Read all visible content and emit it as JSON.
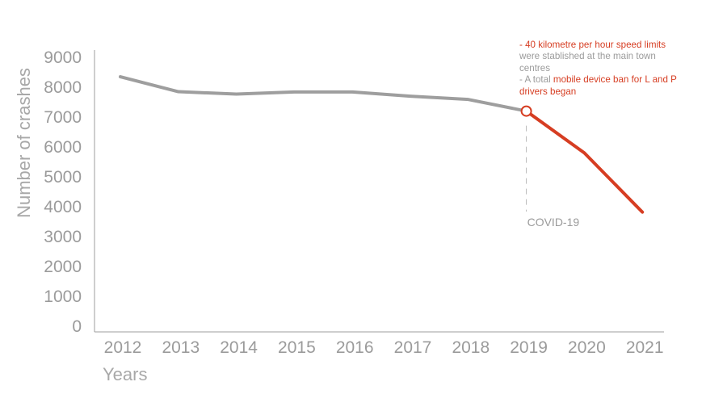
{
  "chart_data": {
    "type": "line",
    "title": "",
    "xlabel": "Years",
    "ylabel": "Number of crashes",
    "categories": [
      "2012",
      "2013",
      "2014",
      "2015",
      "2016",
      "2017",
      "2018",
      "2019",
      "2020",
      "2021"
    ],
    "yticks": [
      "0",
      "1000",
      "2000",
      "3000",
      "4000",
      "5000",
      "6000",
      "7000",
      "8000",
      "9000"
    ],
    "ylim": [
      0,
      9000
    ],
    "grid": false,
    "legend": "none",
    "series": [
      {
        "values": [
          8350,
          7850,
          7770,
          7840,
          7840,
          7700,
          7590,
          7200,
          5800,
          3820
        ],
        "color_before": "#9e9e9e",
        "color_after": "#d63d22"
      }
    ],
    "highlight_index": 7,
    "event": {
      "category": "2019",
      "label": "COVID-19"
    },
    "annotation": {
      "line1_red": "- 40 kilometre per hour speed limits",
      "line1_grey": " were stablished at the main town centres",
      "line2_grey": "- A total ",
      "line2_red": "mobile device ban for L and P drivers began"
    }
  }
}
